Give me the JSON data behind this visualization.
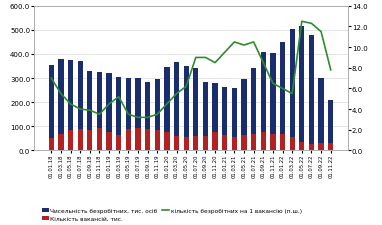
{
  "labels": [
    "01.01.18",
    "01.03.18",
    "01.05.18",
    "01.07.18",
    "01.09.18",
    "01.11.18",
    "01.01.19",
    "01.03.19",
    "01.05.19",
    "01.07.19",
    "01.09.19",
    "01.11.19",
    "01.01.20",
    "01.03.20",
    "01.05.20",
    "01.07.20",
    "01.09.20",
    "01.11.20",
    "01.01.21",
    "01.03.21",
    "01.05.21",
    "01.07.21",
    "01.09.21",
    "01.11.21",
    "01.01.22",
    "01.03.22",
    "01.05.22",
    "01.07.22",
    "01.09.22",
    "01.11.22"
  ],
  "unemployed": [
    355,
    380,
    375,
    370,
    330,
    325,
    320,
    305,
    300,
    300,
    285,
    295,
    345,
    365,
    350,
    340,
    285,
    280,
    265,
    260,
    295,
    340,
    410,
    405,
    450,
    505,
    515,
    480,
    300,
    210
  ],
  "vacancies": [
    50,
    70,
    85,
    90,
    85,
    95,
    75,
    65,
    90,
    95,
    90,
    85,
    75,
    60,
    55,
    60,
    60,
    75,
    65,
    55,
    65,
    70,
    75,
    70,
    70,
    55,
    35,
    25,
    30,
    30
  ],
  "ratio": [
    7.0,
    5.5,
    4.5,
    4.0,
    3.9,
    3.5,
    4.5,
    5.2,
    3.5,
    3.2,
    3.2,
    3.5,
    4.5,
    5.5,
    6.2,
    9.0,
    9.0,
    8.5,
    9.5,
    10.5,
    10.2,
    10.5,
    8.5,
    6.5,
    6.0,
    5.5,
    12.5,
    12.3,
    11.5,
    7.8
  ],
  "bar_unemployed_color": "#1a2e6e",
  "bar_vacancies_color": "#b22222",
  "line_color": "#2e8b2e",
  "ylim_left": [
    0,
    600
  ],
  "ylim_right": [
    0,
    14
  ],
  "yticks_left": [
    0.0,
    100.0,
    200.0,
    300.0,
    400.0,
    500.0,
    600.0
  ],
  "yticks_right": [
    0.0,
    2.0,
    4.0,
    6.0,
    8.0,
    10.0,
    12.0,
    14.0
  ],
  "legend1": "Чисельність безробітних, тис. осіб",
  "legend2": "Кількість вакансій, тис.",
  "legend3": "кількість безробітних на 1 вакансію (п.ш.)",
  "background_color": "#ffffff",
  "grid_color": "#d0d0d0"
}
